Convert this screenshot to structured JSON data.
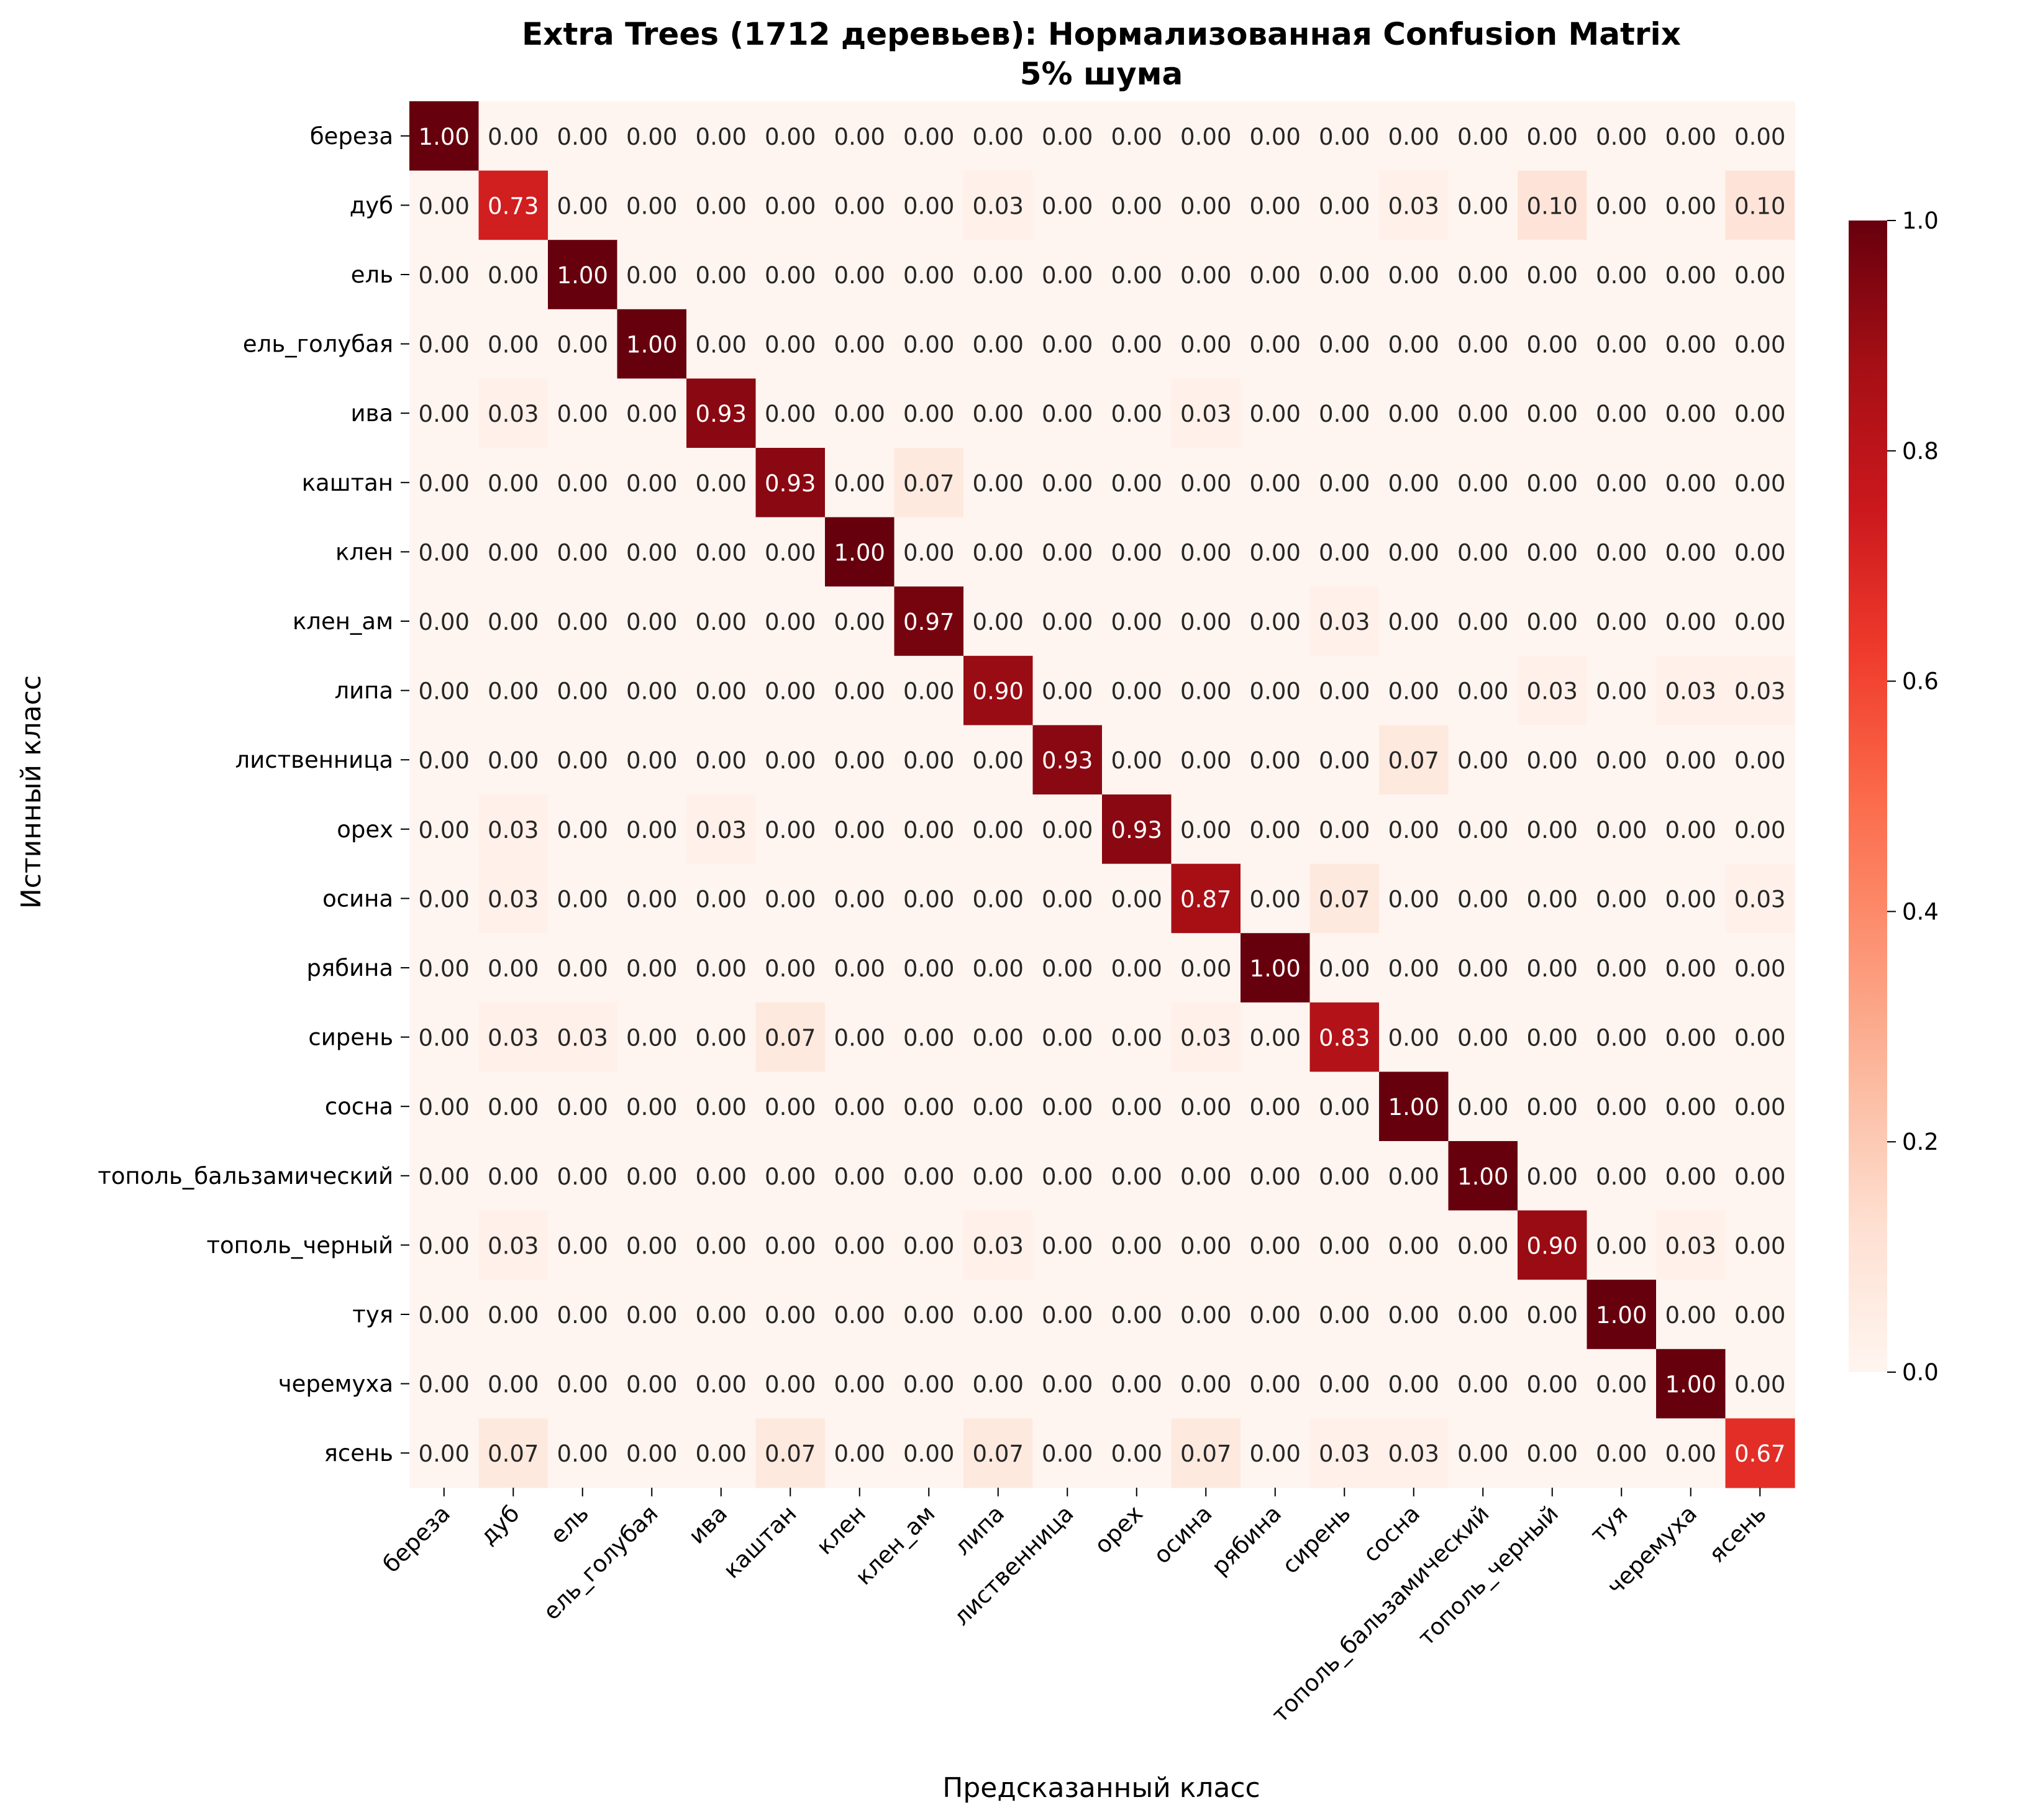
{
  "chart_data": {
    "type": "heatmap",
    "title_line1": "Extra Trees (1712 деревьев): Нормализованная Confusion Matrix",
    "title_line2": "5% шума",
    "xlabel": "Предсказанный класс",
    "ylabel": "Истинный класс",
    "classes": [
      "береза",
      "дуб",
      "ель",
      "ель_голубая",
      "ива",
      "каштан",
      "клен",
      "клен_ам",
      "липа",
      "лиственница",
      "орех",
      "осина",
      "рябина",
      "сирень",
      "сосна",
      "тополь_бальзамический",
      "тополь_черный",
      "туя",
      "черемуха",
      "ясень"
    ],
    "matrix": [
      [
        1.0,
        0.0,
        0.0,
        0.0,
        0.0,
        0.0,
        0.0,
        0.0,
        0.0,
        0.0,
        0.0,
        0.0,
        0.0,
        0.0,
        0.0,
        0.0,
        0.0,
        0.0,
        0.0,
        0.0
      ],
      [
        0.0,
        0.73,
        0.0,
        0.0,
        0.0,
        0.0,
        0.0,
        0.0,
        0.03,
        0.0,
        0.0,
        0.0,
        0.0,
        0.0,
        0.03,
        0.0,
        0.1,
        0.0,
        0.0,
        0.1
      ],
      [
        0.0,
        0.0,
        1.0,
        0.0,
        0.0,
        0.0,
        0.0,
        0.0,
        0.0,
        0.0,
        0.0,
        0.0,
        0.0,
        0.0,
        0.0,
        0.0,
        0.0,
        0.0,
        0.0,
        0.0
      ],
      [
        0.0,
        0.0,
        0.0,
        1.0,
        0.0,
        0.0,
        0.0,
        0.0,
        0.0,
        0.0,
        0.0,
        0.0,
        0.0,
        0.0,
        0.0,
        0.0,
        0.0,
        0.0,
        0.0,
        0.0
      ],
      [
        0.0,
        0.03,
        0.0,
        0.0,
        0.93,
        0.0,
        0.0,
        0.0,
        0.0,
        0.0,
        0.0,
        0.03,
        0.0,
        0.0,
        0.0,
        0.0,
        0.0,
        0.0,
        0.0,
        0.0
      ],
      [
        0.0,
        0.0,
        0.0,
        0.0,
        0.0,
        0.93,
        0.0,
        0.07,
        0.0,
        0.0,
        0.0,
        0.0,
        0.0,
        0.0,
        0.0,
        0.0,
        0.0,
        0.0,
        0.0,
        0.0
      ],
      [
        0.0,
        0.0,
        0.0,
        0.0,
        0.0,
        0.0,
        1.0,
        0.0,
        0.0,
        0.0,
        0.0,
        0.0,
        0.0,
        0.0,
        0.0,
        0.0,
        0.0,
        0.0,
        0.0,
        0.0
      ],
      [
        0.0,
        0.0,
        0.0,
        0.0,
        0.0,
        0.0,
        0.0,
        0.97,
        0.0,
        0.0,
        0.0,
        0.0,
        0.0,
        0.03,
        0.0,
        0.0,
        0.0,
        0.0,
        0.0,
        0.0
      ],
      [
        0.0,
        0.0,
        0.0,
        0.0,
        0.0,
        0.0,
        0.0,
        0.0,
        0.9,
        0.0,
        0.0,
        0.0,
        0.0,
        0.0,
        0.0,
        0.0,
        0.03,
        0.0,
        0.03,
        0.03
      ],
      [
        0.0,
        0.0,
        0.0,
        0.0,
        0.0,
        0.0,
        0.0,
        0.0,
        0.0,
        0.93,
        0.0,
        0.0,
        0.0,
        0.0,
        0.07,
        0.0,
        0.0,
        0.0,
        0.0,
        0.0
      ],
      [
        0.0,
        0.03,
        0.0,
        0.0,
        0.03,
        0.0,
        0.0,
        0.0,
        0.0,
        0.0,
        0.93,
        0.0,
        0.0,
        0.0,
        0.0,
        0.0,
        0.0,
        0.0,
        0.0,
        0.0
      ],
      [
        0.0,
        0.03,
        0.0,
        0.0,
        0.0,
        0.0,
        0.0,
        0.0,
        0.0,
        0.0,
        0.0,
        0.87,
        0.0,
        0.07,
        0.0,
        0.0,
        0.0,
        0.0,
        0.0,
        0.03
      ],
      [
        0.0,
        0.0,
        0.0,
        0.0,
        0.0,
        0.0,
        0.0,
        0.0,
        0.0,
        0.0,
        0.0,
        0.0,
        1.0,
        0.0,
        0.0,
        0.0,
        0.0,
        0.0,
        0.0,
        0.0
      ],
      [
        0.0,
        0.03,
        0.03,
        0.0,
        0.0,
        0.07,
        0.0,
        0.0,
        0.0,
        0.0,
        0.0,
        0.03,
        0.0,
        0.83,
        0.0,
        0.0,
        0.0,
        0.0,
        0.0,
        0.0
      ],
      [
        0.0,
        0.0,
        0.0,
        0.0,
        0.0,
        0.0,
        0.0,
        0.0,
        0.0,
        0.0,
        0.0,
        0.0,
        0.0,
        0.0,
        1.0,
        0.0,
        0.0,
        0.0,
        0.0,
        0.0
      ],
      [
        0.0,
        0.0,
        0.0,
        0.0,
        0.0,
        0.0,
        0.0,
        0.0,
        0.0,
        0.0,
        0.0,
        0.0,
        0.0,
        0.0,
        0.0,
        1.0,
        0.0,
        0.0,
        0.0,
        0.0
      ],
      [
        0.0,
        0.03,
        0.0,
        0.0,
        0.0,
        0.0,
        0.0,
        0.0,
        0.03,
        0.0,
        0.0,
        0.0,
        0.0,
        0.0,
        0.0,
        0.0,
        0.9,
        0.0,
        0.03,
        0.0
      ],
      [
        0.0,
        0.0,
        0.0,
        0.0,
        0.0,
        0.0,
        0.0,
        0.0,
        0.0,
        0.0,
        0.0,
        0.0,
        0.0,
        0.0,
        0.0,
        0.0,
        0.0,
        1.0,
        0.0,
        0.0
      ],
      [
        0.0,
        0.0,
        0.0,
        0.0,
        0.0,
        0.0,
        0.0,
        0.0,
        0.0,
        0.0,
        0.0,
        0.0,
        0.0,
        0.0,
        0.0,
        0.0,
        0.0,
        0.0,
        1.0,
        0.0
      ],
      [
        0.0,
        0.07,
        0.0,
        0.0,
        0.0,
        0.07,
        0.0,
        0.0,
        0.07,
        0.0,
        0.0,
        0.07,
        0.0,
        0.03,
        0.03,
        0.0,
        0.0,
        0.0,
        0.0,
        0.67
      ]
    ],
    "colorbar": {
      "range": [
        0,
        1
      ],
      "ticks": [
        "0.0",
        "0.2",
        "0.4",
        "0.6",
        "0.8",
        "1.0"
      ],
      "colormap": "Reds",
      "colors": [
        "#fff5f0",
        "#fee0d2",
        "#fcbba1",
        "#fc9272",
        "#fb6a4a",
        "#ef3b2c",
        "#cb181d",
        "#a50f15",
        "#67000d"
      ]
    }
  }
}
